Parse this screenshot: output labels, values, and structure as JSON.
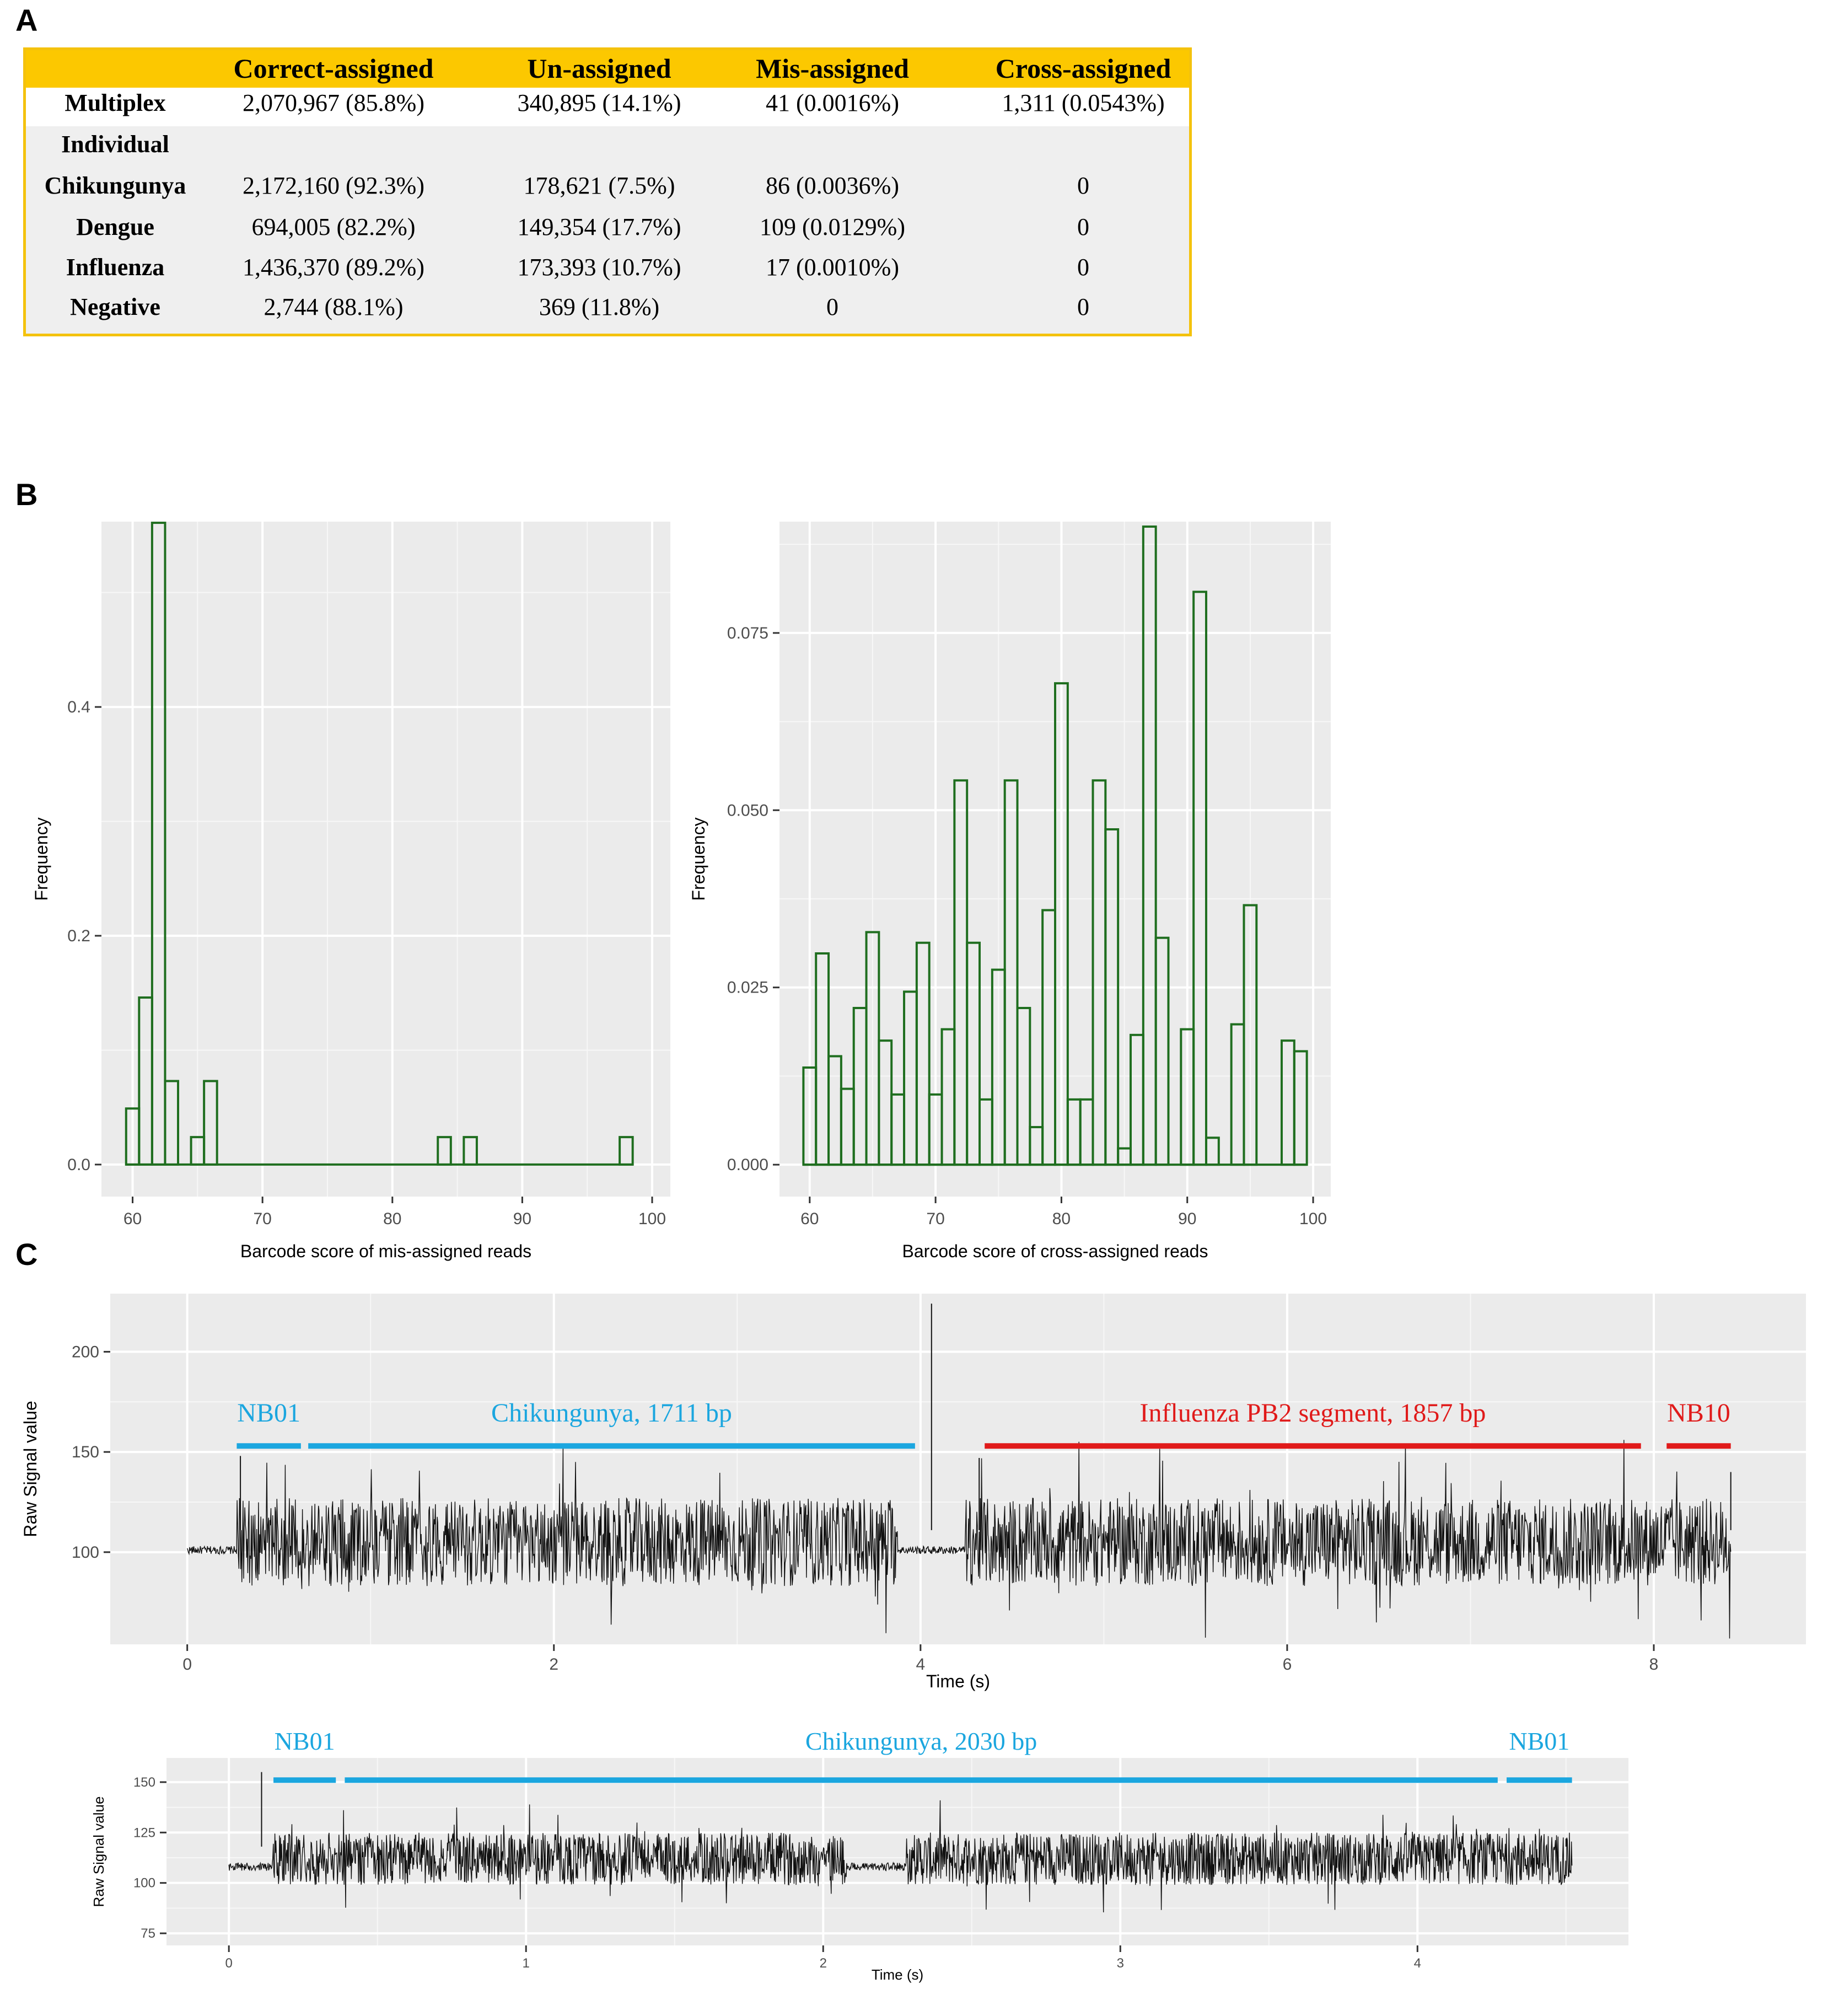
{
  "panels": {
    "a": "A",
    "b": "B",
    "c": "C"
  },
  "table": {
    "headers": [
      "",
      "Correct-assigned",
      "Un-assigned",
      "Mis-assigned",
      "Cross-assigned"
    ],
    "rows": [
      {
        "label": "Multiplex",
        "cells": [
          "2,070,967 (85.8%)",
          "340,895 (14.1%)",
          "41 (0.0016%)",
          "1,311 (0.0543%)"
        ]
      },
      {
        "label": "Individual",
        "cells": [
          "",
          "",
          "",
          ""
        ]
      },
      {
        "label": "Chikungunya",
        "cells": [
          "2,172,160 (92.3%)",
          "178,621 (7.5%)",
          "86 (0.0036%)",
          "0"
        ]
      },
      {
        "label": "Dengue",
        "cells": [
          "694,005 (82.2%)",
          "149,354 (17.7%)",
          "109 (0.0129%)",
          "0"
        ]
      },
      {
        "label": "Influenza",
        "cells": [
          "1,436,370 (89.2%)",
          "173,393 (10.7%)",
          "17 (0.0010%)",
          "0"
        ]
      },
      {
        "label": "Negative",
        "cells": [
          "2,744 (88.1%)",
          "369 (11.8%)",
          "0",
          "0"
        ]
      }
    ]
  },
  "chart_data": [
    {
      "type": "bar",
      "subtype": "histogram",
      "title": "",
      "xlabel": "Barcode score of mis-assigned reads",
      "ylabel": "Frequency",
      "xlim": [
        57.6,
        101.4
      ],
      "ylim": [
        -0.028,
        0.562
      ],
      "xticks": [
        60,
        70,
        80,
        90,
        100
      ],
      "yticks": [
        0.0,
        0.2,
        0.4
      ],
      "ytick_labels": [
        "0.0",
        "0.2",
        "0.4"
      ],
      "bin_width": 1,
      "bin_start": 59.5,
      "values": [
        0.049,
        0.146,
        0.561,
        0.073,
        0,
        0.024,
        0.073,
        0,
        0,
        0,
        0,
        0,
        0,
        0,
        0,
        0,
        0,
        0,
        0,
        0,
        0,
        0,
        0,
        0,
        0.024,
        0,
        0.024,
        0,
        0,
        0,
        0,
        0,
        0,
        0,
        0,
        0,
        0,
        0,
        0.024
      ]
    },
    {
      "type": "bar",
      "subtype": "histogram",
      "title": "",
      "xlabel": "Barcode score of cross-assigned reads",
      "ylabel": "Frequency",
      "xlim": [
        57.6,
        101.4
      ],
      "ylim": [
        -0.0045,
        0.0907
      ],
      "xticks": [
        60,
        70,
        80,
        90,
        100
      ],
      "yticks": [
        0.0,
        0.025,
        0.05,
        0.075
      ],
      "ytick_labels": [
        "0.000",
        "0.025",
        "0.050",
        "0.075"
      ],
      "bin_width": 1,
      "bin_start": 59.5,
      "values": [
        0.0137,
        0.0298,
        0.0153,
        0.0107,
        0.0221,
        0.0328,
        0.0175,
        0.0099,
        0.0244,
        0.0313,
        0.0099,
        0.0191,
        0.0542,
        0.0313,
        0.0092,
        0.0275,
        0.0542,
        0.0221,
        0.0053,
        0.0359,
        0.0679,
        0.0092,
        0.0092,
        0.0542,
        0.0473,
        0.0023,
        0.0183,
        0.09,
        0.032,
        0,
        0.0191,
        0.0808,
        0.0038,
        0,
        0.0198,
        0.0366,
        0,
        0,
        0.0175,
        0.016
      ]
    },
    {
      "type": "line",
      "subtype": "raw-signal-trace",
      "title": "",
      "xlabel": "Time (s)",
      "ylabel": "Raw Signal value",
      "xlim": [
        -0.42,
        8.83
      ],
      "ylim": [
        54,
        229
      ],
      "xticks": [
        0,
        2,
        4,
        6,
        8
      ],
      "yticks": [
        100,
        150,
        200
      ],
      "segments": [
        {
          "label": "NB01",
          "start": 0.27,
          "end": 0.62,
          "color": "#1ba6df"
        },
        {
          "label": "Chikungunya, 1711 bp",
          "start": 0.66,
          "end": 3.97,
          "color": "#1ba6df"
        },
        {
          "label": "Influenza PB2 segment, 1857 bp",
          "start": 4.35,
          "end": 7.93,
          "color": "#e01a1a"
        },
        {
          "label": "NB10",
          "start": 8.07,
          "end": 8.42,
          "color": "#e01a1a"
        }
      ],
      "segment_y": 153,
      "trace": {
        "baseline": 101,
        "start": 0,
        "end": 8.42,
        "amplitude": 22,
        "spikes": [
          [
            0.29,
            148
          ],
          [
            4.06,
            224
          ],
          [
            4.32,
            147
          ],
          [
            8.42,
            140
          ]
        ]
      }
    },
    {
      "type": "line",
      "subtype": "raw-signal-trace",
      "title": "",
      "xlabel": "Time (s)",
      "ylabel": "Raw Signal value",
      "xlim": [
        -0.21,
        4.71
      ],
      "ylim": [
        69,
        162
      ],
      "xticks": [
        0,
        1,
        2,
        3,
        4
      ],
      "yticks": [
        75,
        100,
        125,
        150
      ],
      "segments": [
        {
          "label": "NB01",
          "start": 0.15,
          "end": 0.36,
          "color": "#1ba6df"
        },
        {
          "label": "Chikungunya, 2030 bp",
          "start": 0.39,
          "end": 4.27,
          "color": "#1ba6df"
        },
        {
          "label": "NB01",
          "start": 4.3,
          "end": 4.52,
          "color": "#1ba6df"
        }
      ],
      "segment_y": 151,
      "trace": {
        "baseline": 108,
        "start": 0,
        "end": 4.52,
        "amplitude": 13,
        "spikes": [
          [
            0.11,
            155
          ],
          [
            4.5,
            122
          ]
        ]
      }
    }
  ],
  "colors": {
    "plot_bg": "#ebebeb",
    "grid": "#ffffff",
    "bar_stroke": "#1f6e1f",
    "header_bg": "#fcc800",
    "table_border": "#f4c20d"
  }
}
